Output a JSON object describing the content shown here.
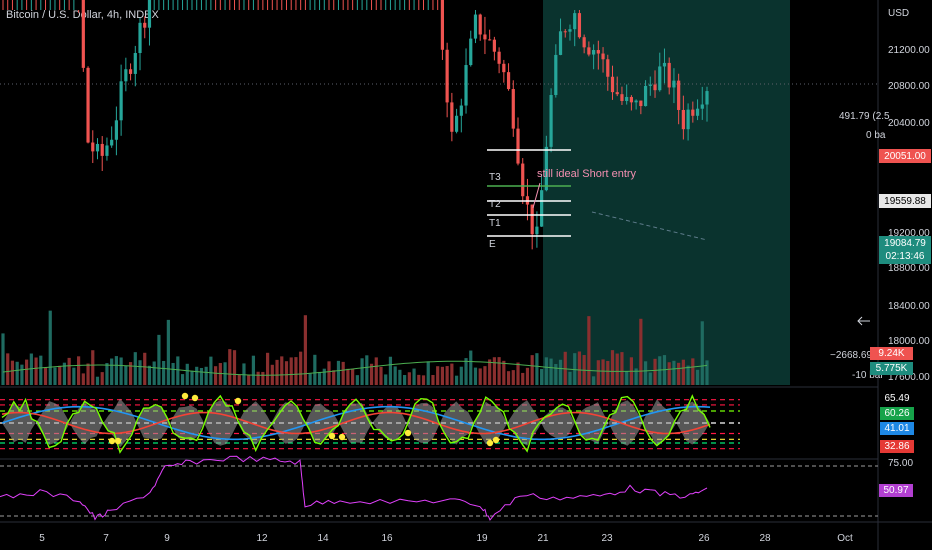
{
  "header": {
    "title": "Bitcoin / U.S. Dollar, 4h, INDEX"
  },
  "colors": {
    "bull": "#26a69a",
    "bear": "#ef5350",
    "bg": "#000000",
    "axis_text": "#d1d4dc",
    "green_line": "#4caf50",
    "short_zone": "#4a1012",
    "target_zone": "#0c3c36",
    "rsi_line": "#e040fb"
  },
  "price_axis": {
    "currency": "USD",
    "ticks": [
      "21200.00",
      "20800.00",
      "20400.00",
      "19200.00",
      "18800.00",
      "18400.00",
      "18000.00",
      "17600.00"
    ],
    "badges": {
      "stop": "20051.00",
      "entry": "19559.88",
      "last": "19084.79",
      "countdown": "02:13:46"
    },
    "measure_top": "491.79 (2.5",
    "measure_top_bars": "0 ba",
    "measure_bottom": "−2668.69 (−1",
    "measure_bottom_bars": "-10 bar"
  },
  "volume": {
    "badge_red": "9.24K",
    "badge_green": "5.775K"
  },
  "oscillator": {
    "levels": [
      "65.49",
      "60.26",
      "41.01",
      "32.86"
    ]
  },
  "rsi": {
    "level_label": "75.00",
    "value": "50.97"
  },
  "annotations": {
    "trade_note": "still ideal Short entry",
    "targets": [
      "T3",
      "T2",
      "T1",
      "E"
    ]
  },
  "time_axis": {
    "labels": [
      "5",
      "7",
      "9",
      "12",
      "14",
      "16",
      "19",
      "21",
      "23",
      "26",
      "28",
      "Oct"
    ]
  },
  "chart_data": {
    "type": "candlestick",
    "title": "Bitcoin / U.S. Dollar, 4h, INDEX",
    "y_unit": "USD",
    "price_range": [
      17600,
      21600
    ],
    "x": [
      "5",
      "7",
      "9",
      "12",
      "14",
      "16",
      "19",
      "21",
      "23",
      "26",
      "28",
      "Oct"
    ],
    "close_path": [
      19800,
      19850,
      19780,
      19900,
      19820,
      19880,
      19700,
      18800,
      18700,
      18850,
      19100,
      19300,
      19500,
      20500,
      20900,
      21300,
      21500,
      21600,
      21600,
      21600,
      21650,
      21500,
      20700,
      20350,
      20100,
      19900,
      20050,
      19950,
      19800,
      19850,
      19900,
      19750,
      19800,
      19950,
      20050,
      19900,
      19400,
      18800,
      19100,
      19400,
      19300,
      19200,
      18950,
      18500,
      18300,
      18950,
      19350,
      19450,
      19300,
      19250,
      19100,
      19000,
      18950,
      19050,
      19150,
      19100,
      18900,
      19000,
      19085
    ],
    "levels": {
      "stop": 20051,
      "entry": 19559.88,
      "last": 19084.79
    },
    "oscillator_levels": [
      65.49,
      60.26,
      41.01,
      32.86
    ],
    "rsi_value": 50.97
  }
}
